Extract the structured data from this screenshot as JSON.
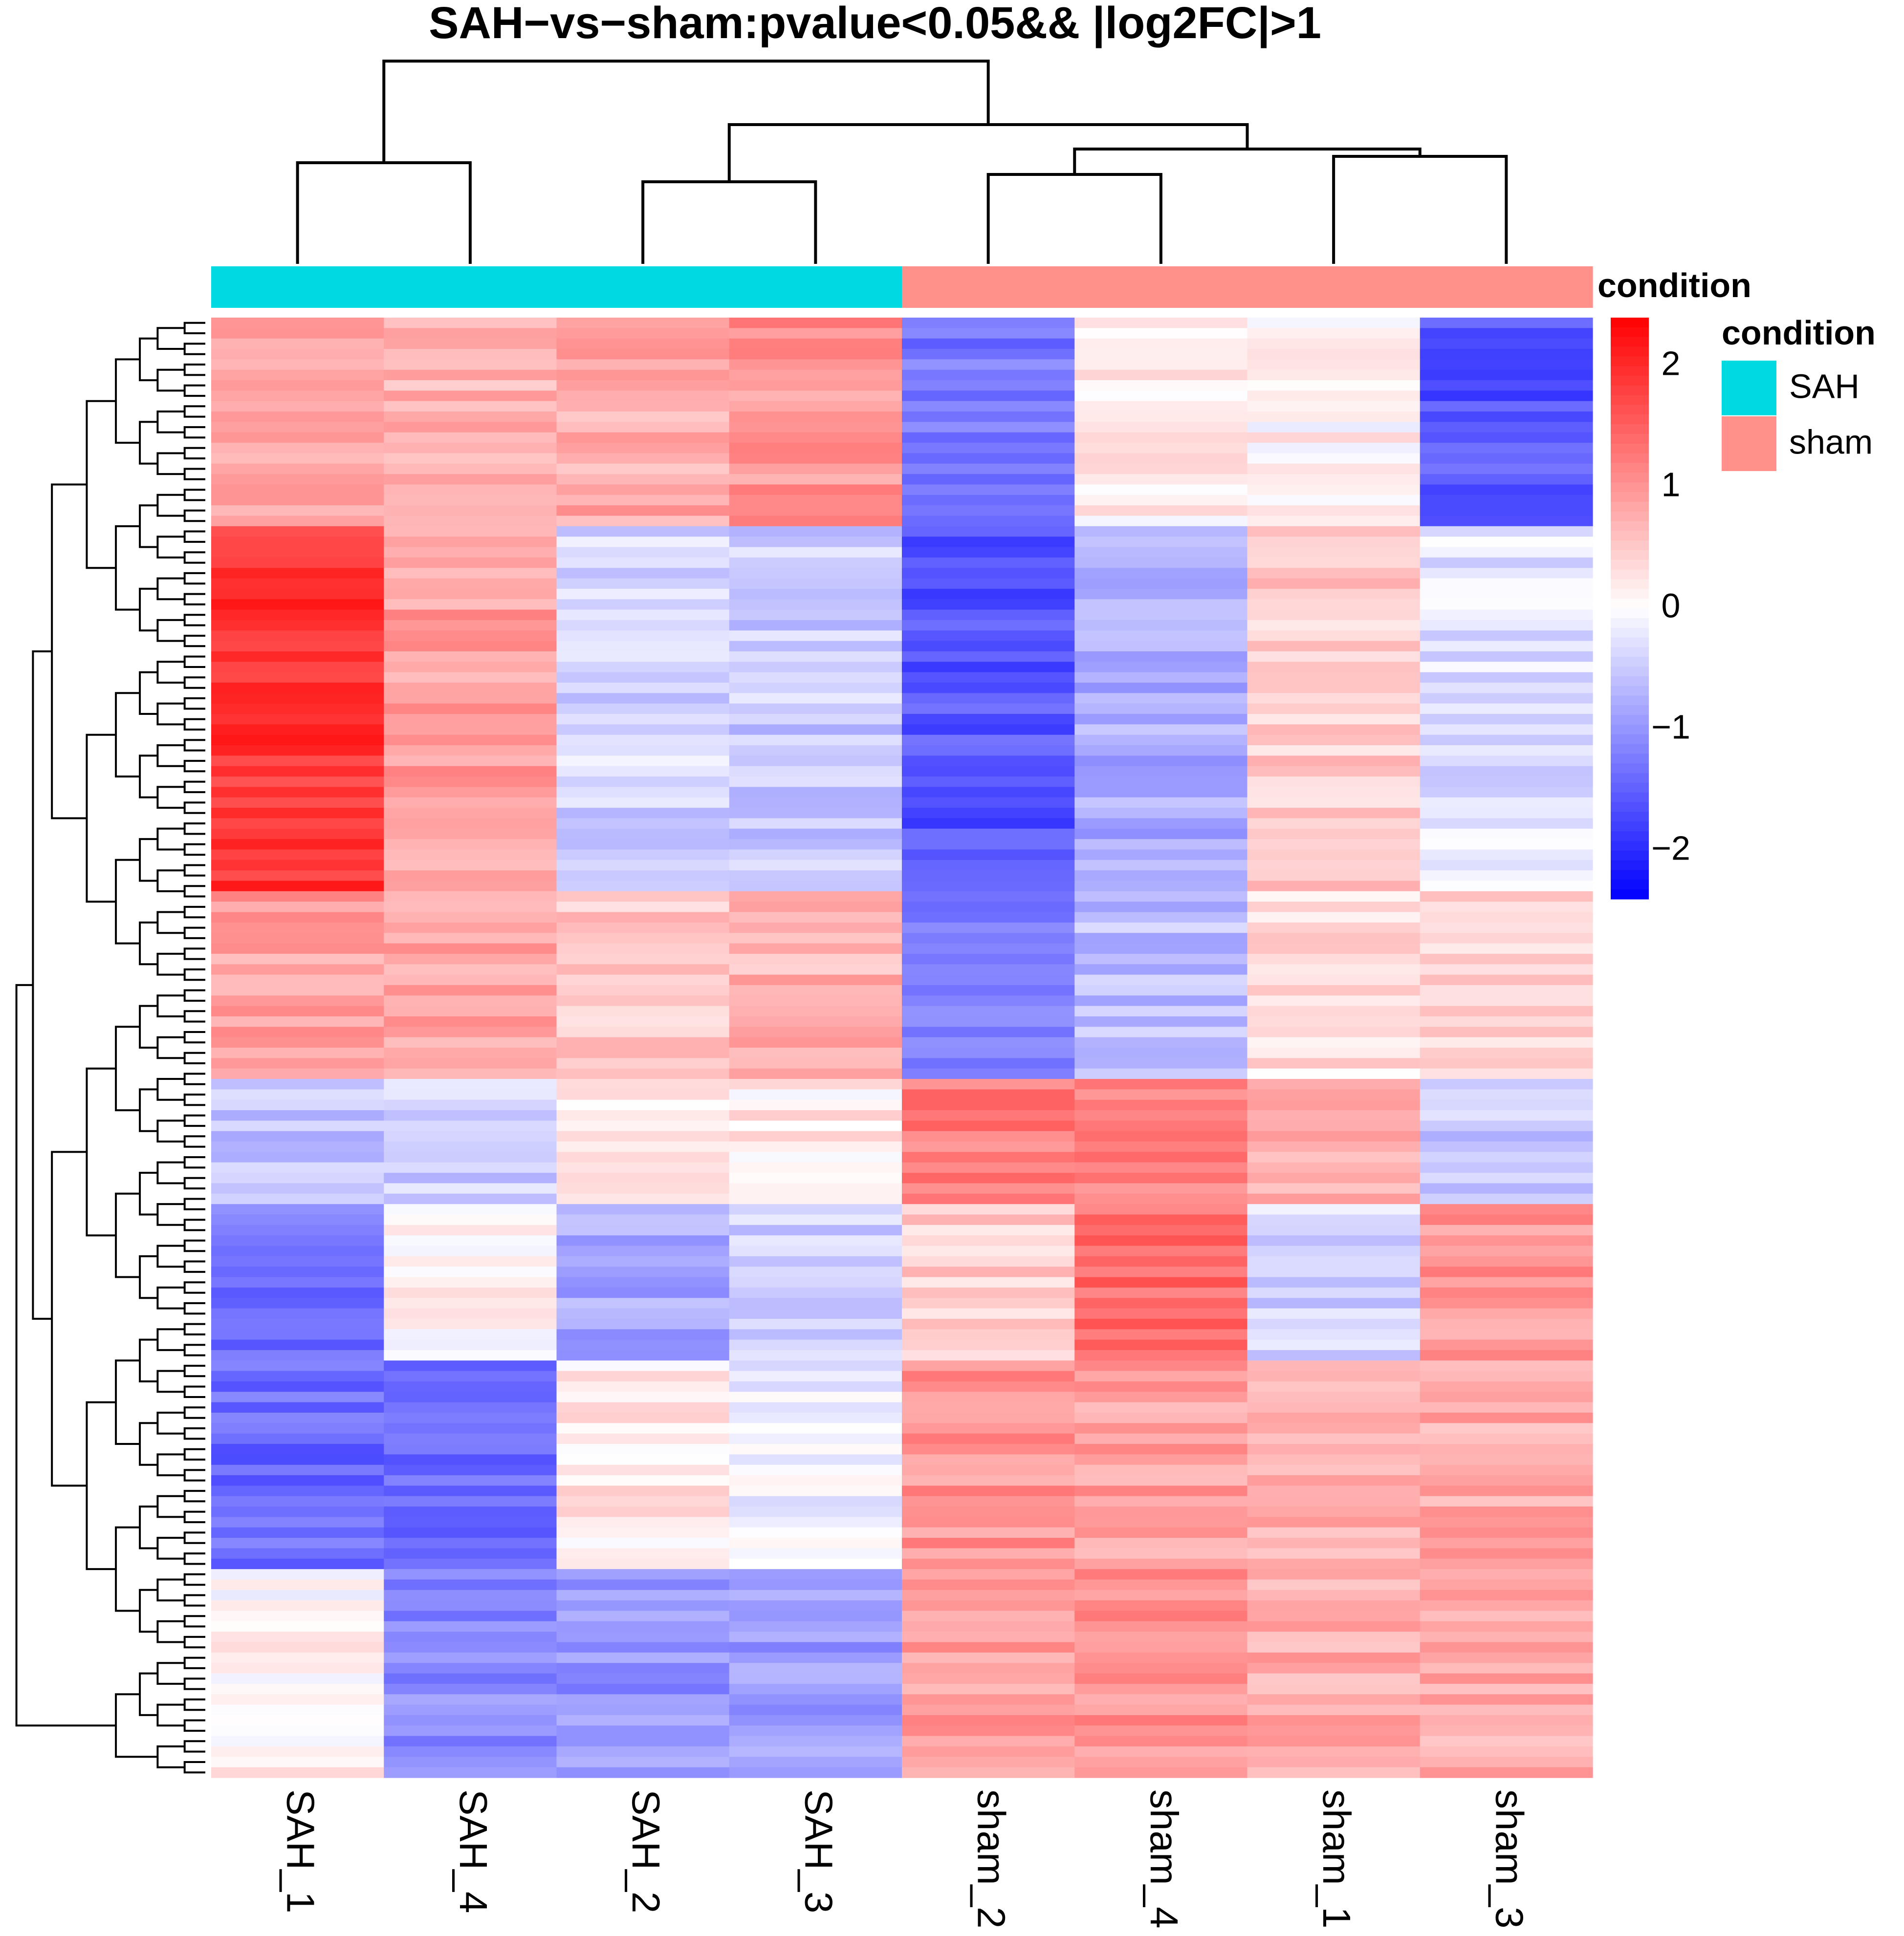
{
  "chart_data": {
    "type": "heatmap",
    "title": "SAH−vs−sham:pvalue<0.05&& |log2FC|>1",
    "columns": [
      "SAH_1",
      "SAH_4",
      "SAH_2",
      "SAH_3",
      "sham_2",
      "sham_4",
      "sham_1",
      "sham_3"
    ],
    "column_condition": [
      "SAH",
      "SAH",
      "SAH",
      "SAH",
      "sham",
      "sham",
      "sham",
      "sham"
    ],
    "annotation_track_label": "condition",
    "legend": {
      "title": "condition",
      "entries": [
        {
          "label": "SAH",
          "color": "#00D9DF"
        },
        {
          "label": "sham",
          "color": "#FF918A"
        }
      ]
    },
    "color_scale": {
      "min": -2.4,
      "max": 2.4,
      "ticks": [
        2,
        1,
        0,
        -1,
        -2
      ],
      "tick_labels": [
        "2",
        "1",
        "0",
        "−1",
        "−2"
      ],
      "low_color": "#0000FF",
      "mid_color": "#FFFFFF",
      "high_color": "#FF0000"
    },
    "n_rows": 140,
    "row_blocks": [
      {
        "rows": 20,
        "values": [
          0.9,
          0.7,
          0.8,
          1.0,
          -1.3,
          0.2,
          0.1,
          -1.6
        ]
      },
      {
        "rows": 35,
        "values": [
          1.9,
          0.9,
          -0.4,
          -0.5,
          -1.6,
          -0.8,
          0.5,
          -0.3
        ]
      },
      {
        "rows": 18,
        "values": [
          0.9,
          0.9,
          0.5,
          0.7,
          -1.2,
          -0.6,
          0.3,
          0.4
        ]
      },
      {
        "rows": 12,
        "values": [
          -0.6,
          -0.5,
          0.1,
          0.2,
          1.2,
          1.2,
          0.8,
          -0.5
        ]
      },
      {
        "rows": 15,
        "values": [
          -1.3,
          0.1,
          -0.8,
          -0.4,
          0.5,
          1.4,
          -0.4,
          1.0
        ]
      },
      {
        "rows": 20,
        "values": [
          -1.4,
          -1.4,
          0.2,
          -0.1,
          1.0,
          0.9,
          0.7,
          0.8
        ]
      },
      {
        "rows": 20,
        "values": [
          0.1,
          -1.1,
          -1.0,
          -0.9,
          0.9,
          1.0,
          0.8,
          0.8
        ]
      }
    ]
  }
}
